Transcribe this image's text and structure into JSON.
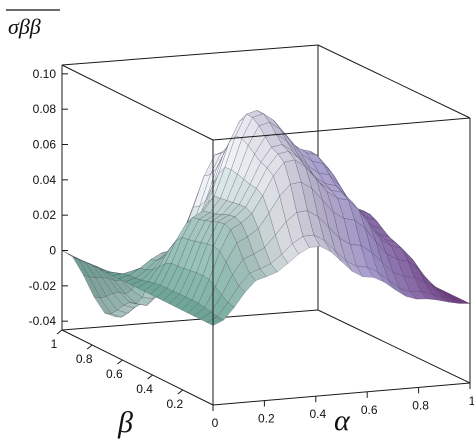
{
  "chart_data": {
    "type": "surface3d",
    "zlabel": "σββ",
    "xlabel": "α",
    "ylabel": "β",
    "x_ticks": [
      "0",
      "0.2",
      "0.4",
      "0.6",
      "0.8",
      "1"
    ],
    "y_ticks": [
      "1",
      "0.8",
      "0.6",
      "0.4",
      "0.2"
    ],
    "z_ticks": [
      "0.10",
      "0.08",
      "0.06",
      "0.04",
      "0.02",
      "0",
      "-0.02",
      "-0.04"
    ],
    "xlim": [
      0,
      1
    ],
    "ylim": [
      0,
      1
    ],
    "zlim": [
      -0.045,
      0.105
    ],
    "grid": false,
    "colormap": [
      "#6fae9c",
      "#f4f4fa",
      "#b7a9e6",
      "#7a3a8c"
    ],
    "surface_grid": {
      "alpha": [
        0,
        0.2,
        0.4,
        0.6,
        0.8,
        1
      ],
      "beta": [
        0,
        0.2,
        0.4,
        0.6,
        0.8,
        1
      ],
      "z_by_beta": [
        [
          0,
          0.025,
          0.04,
          0.02,
          0.005,
          0
        ],
        [
          0,
          0.05,
          0.085,
          0.06,
          0.03,
          0
        ],
        [
          0,
          0.045,
          0.1,
          0.075,
          0.04,
          0
        ],
        [
          0,
          0.015,
          0.07,
          0.06,
          0.03,
          0
        ],
        [
          0,
          -0.025,
          0.01,
          0.02,
          0.01,
          0
        ],
        [
          0,
          -0.04,
          -0.01,
          0,
          0,
          0
        ]
      ]
    }
  }
}
